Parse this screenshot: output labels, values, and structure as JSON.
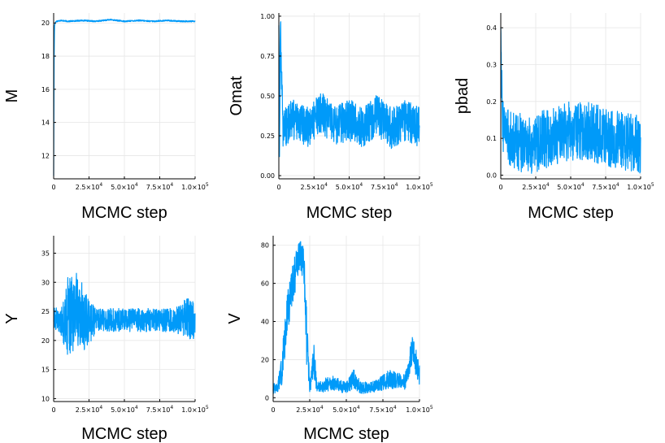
{
  "colors": {
    "series": "#009af9",
    "grid": "#e6e6e6",
    "axis": "#000000"
  },
  "chart_data": [
    {
      "type": "line",
      "xlabel": "MCMC step",
      "ylabel": "M",
      "xlim": [
        0,
        100000
      ],
      "ylim": [
        10.6,
        20.6
      ],
      "xticks": [
        0,
        25000,
        50000,
        75000,
        100000
      ],
      "xtick_labels": [
        "0",
        "2.5×10^4",
        "5.0×10^4",
        "7.5×10^4",
        "1.0×10^5"
      ],
      "yticks": [
        12,
        14,
        16,
        18,
        20
      ],
      "ytick_labels": [
        "12",
        "14",
        "16",
        "18",
        "20"
      ],
      "grid": true,
      "series": [
        {
          "x": [
            0,
            300,
            600,
            1000,
            2000,
            5000,
            10000,
            20000,
            30000,
            40000,
            50000,
            60000,
            70000,
            80000,
            90000,
            100000
          ],
          "y": [
            10.8,
            17.5,
            19.8,
            20.0,
            20.1,
            20.15,
            20.1,
            20.15,
            20.1,
            20.2,
            20.1,
            20.15,
            20.1,
            20.15,
            20.1,
            20.1
          ]
        }
      ]
    },
    {
      "type": "line",
      "xlabel": "MCMC step",
      "ylabel": "Omat",
      "xlim": [
        0,
        100000
      ],
      "ylim": [
        -0.02,
        1.02
      ],
      "xticks": [
        0,
        25000,
        50000,
        75000,
        100000
      ],
      "xtick_labels": [
        "0",
        "2.5×10^4",
        "5.0×10^4",
        "7.5×10^4",
        "1.0×10^5"
      ],
      "yticks": [
        0,
        0.25,
        0.5,
        0.75,
        1.0
      ],
      "ytick_labels": [
        "0.00",
        "0.25",
        "0.50",
        "0.75",
        "1.00"
      ],
      "grid": true,
      "series": [
        {
          "x": [
            0,
            500,
            1000,
            3000,
            10000,
            20000,
            30000,
            40000,
            50000,
            60000,
            70000,
            80000,
            90000,
            100000
          ],
          "y": [
            1.0,
            0.05,
            0.95,
            0.3,
            0.35,
            0.3,
            0.4,
            0.3,
            0.35,
            0.3,
            0.38,
            0.3,
            0.35,
            0.3
          ],
          "spread": 0.13
        }
      ]
    },
    {
      "type": "line",
      "xlabel": "MCMC step",
      "ylabel": "pbad",
      "xlim": [
        0,
        100000
      ],
      "ylim": [
        -0.01,
        0.44
      ],
      "xticks": [
        0,
        25000,
        50000,
        75000,
        100000
      ],
      "xtick_labels": [
        "0",
        "2.5×10^4",
        "5.0×10^4",
        "7.5×10^4",
        "1.0×10^5"
      ],
      "yticks": [
        0,
        0.1,
        0.2,
        0.3,
        0.4
      ],
      "ytick_labels": [
        "0.0",
        "0.1",
        "0.2",
        "0.3",
        "0.4"
      ],
      "grid": true,
      "series": [
        {
          "x": [
            0,
            1000,
            5000,
            20000,
            40000,
            50000,
            60000,
            80000,
            100000
          ],
          "y": [
            0.43,
            0.15,
            0.1,
            0.08,
            0.11,
            0.12,
            0.12,
            0.1,
            0.08
          ],
          "spread": 0.08
        }
      ]
    },
    {
      "type": "line",
      "xlabel": "MCMC step",
      "ylabel": "Y",
      "xlim": [
        0,
        100000
      ],
      "ylim": [
        9.5,
        38
      ],
      "xticks": [
        0,
        25000,
        50000,
        75000,
        100000
      ],
      "xtick_labels": [
        "0",
        "2.5×10^4",
        "5.0×10^4",
        "7.5×10^4",
        "1.0×10^5"
      ],
      "yticks": [
        10,
        15,
        20,
        25,
        30,
        35
      ],
      "ytick_labels": [
        "10",
        "15",
        "20",
        "25",
        "30",
        "35"
      ],
      "grid": true,
      "series": [
        {
          "x": [
            0,
            5000,
            10000,
            15000,
            20000,
            25000,
            30000,
            40000,
            50000,
            60000,
            70000,
            80000,
            90000,
            95000,
            100000
          ],
          "y": [
            24,
            23,
            24,
            25,
            24,
            23,
            23.5,
            23.5,
            23.5,
            23.5,
            23.5,
            23.5,
            23.5,
            24,
            23
          ],
          "spread": [
            2,
            2,
            7,
            7,
            6,
            4,
            2,
            2,
            2,
            2,
            2,
            2,
            2.5,
            4,
            3
          ]
        }
      ]
    },
    {
      "type": "line",
      "xlabel": "MCMC step",
      "ylabel": "V",
      "xlim": [
        0,
        100000
      ],
      "ylim": [
        -2,
        85
      ],
      "xticks": [
        0,
        25000,
        50000,
        75000,
        100000
      ],
      "xtick_labels": [
        "0",
        "2.5×10^4",
        "5.0×10^4",
        "7.5×10^4",
        "1.0×10^5"
      ],
      "yticks": [
        0,
        20,
        40,
        60,
        80
      ],
      "ytick_labels": [
        "0",
        "20",
        "40",
        "60",
        "80"
      ],
      "grid": true,
      "series": [
        {
          "x": [
            0,
            3000,
            6000,
            9000,
            12000,
            15000,
            18000,
            21000,
            23000,
            25000,
            28000,
            30000,
            40000,
            50000,
            55000,
            60000,
            70000,
            80000,
            90000,
            95000,
            100000
          ],
          "y": [
            5,
            5,
            15,
            40,
            55,
            65,
            75,
            70,
            30,
            5,
            20,
            5,
            8,
            5,
            10,
            5,
            6,
            10,
            8,
            25,
            12
          ],
          "spread": [
            3,
            3,
            8,
            12,
            10,
            10,
            8,
            10,
            15,
            3,
            10,
            3,
            4,
            3,
            5,
            3,
            3,
            5,
            4,
            8,
            6
          ]
        }
      ]
    }
  ]
}
